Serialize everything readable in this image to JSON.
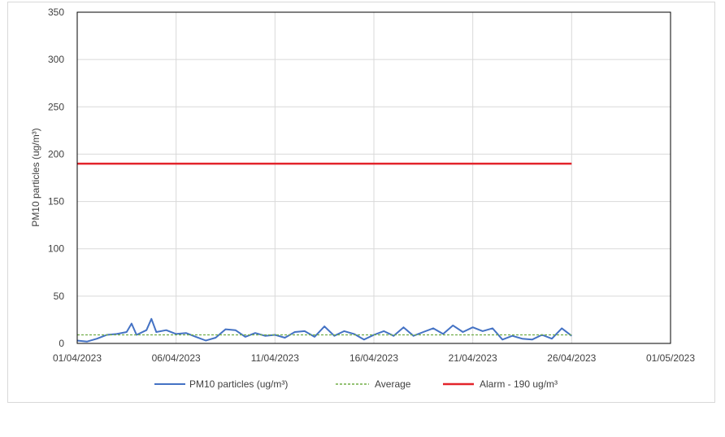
{
  "chart_data": {
    "type": "line",
    "title": "",
    "xlabel": "",
    "ylabel": "PM10 particles (ug/m³)",
    "ylim": [
      0,
      350
    ],
    "yticks": [
      0,
      50,
      100,
      150,
      200,
      250,
      300,
      350
    ],
    "xlim": [
      "2023-04-01",
      "2023-05-01"
    ],
    "xticks": [
      "01/04/2023",
      "06/04/2023",
      "11/04/2023",
      "16/04/2023",
      "21/04/2023",
      "26/04/2023",
      "01/05/2023"
    ],
    "grid": true,
    "legend_position": "bottom",
    "series": [
      {
        "name": "PM10 particles (ug/m³)",
        "color": "#4472c4",
        "style": "solid",
        "points": [
          [
            "2023-04-01",
            3
          ],
          [
            "2023-04-01T12:00",
            2
          ],
          [
            "2023-04-02",
            5
          ],
          [
            "2023-04-02T12:00",
            9
          ],
          [
            "2023-04-03",
            10
          ],
          [
            "2023-04-03T12:00",
            12
          ],
          [
            "2023-04-03T18:00",
            21
          ],
          [
            "2023-04-04",
            9
          ],
          [
            "2023-04-04T12:00",
            14
          ],
          [
            "2023-04-04T18:00",
            26
          ],
          [
            "2023-04-05",
            12
          ],
          [
            "2023-04-05T12:00",
            14
          ],
          [
            "2023-04-06",
            10
          ],
          [
            "2023-04-06T12:00",
            11
          ],
          [
            "2023-04-07",
            7
          ],
          [
            "2023-04-07T12:00",
            3
          ],
          [
            "2023-04-08",
            6
          ],
          [
            "2023-04-08T12:00",
            15
          ],
          [
            "2023-04-09",
            14
          ],
          [
            "2023-04-09T12:00",
            7
          ],
          [
            "2023-04-10",
            11
          ],
          [
            "2023-04-10T12:00",
            8
          ],
          [
            "2023-04-11",
            9
          ],
          [
            "2023-04-11T12:00",
            6
          ],
          [
            "2023-04-12",
            12
          ],
          [
            "2023-04-12T12:00",
            13
          ],
          [
            "2023-04-13",
            7
          ],
          [
            "2023-04-13T12:00",
            18
          ],
          [
            "2023-04-14",
            8
          ],
          [
            "2023-04-14T12:00",
            13
          ],
          [
            "2023-04-15",
            10
          ],
          [
            "2023-04-15T12:00",
            4
          ],
          [
            "2023-04-16",
            9
          ],
          [
            "2023-04-16T12:00",
            13
          ],
          [
            "2023-04-17",
            8
          ],
          [
            "2023-04-17T12:00",
            17
          ],
          [
            "2023-04-18",
            8
          ],
          [
            "2023-04-18T12:00",
            12
          ],
          [
            "2023-04-19",
            16
          ],
          [
            "2023-04-19T12:00",
            10
          ],
          [
            "2023-04-20",
            19
          ],
          [
            "2023-04-20T12:00",
            12
          ],
          [
            "2023-04-21",
            17
          ],
          [
            "2023-04-21T12:00",
            13
          ],
          [
            "2023-04-22",
            16
          ],
          [
            "2023-04-22T12:00",
            4
          ],
          [
            "2023-04-23",
            8
          ],
          [
            "2023-04-23T12:00",
            5
          ],
          [
            "2023-04-24",
            4
          ],
          [
            "2023-04-24T12:00",
            9
          ],
          [
            "2023-04-25",
            5
          ],
          [
            "2023-04-25T12:00",
            16
          ],
          [
            "2023-04-26",
            8
          ]
        ]
      },
      {
        "name": "Average",
        "color": "#70ad47",
        "style": "dashed",
        "points": [
          [
            "2023-04-01",
            9
          ],
          [
            "2023-04-26",
            9
          ]
        ]
      },
      {
        "name": "Alarm - 190 ug/m³",
        "color": "#e3242b",
        "style": "solid",
        "points": [
          [
            "2023-04-01",
            190
          ],
          [
            "2023-04-26",
            190
          ]
        ]
      }
    ]
  }
}
